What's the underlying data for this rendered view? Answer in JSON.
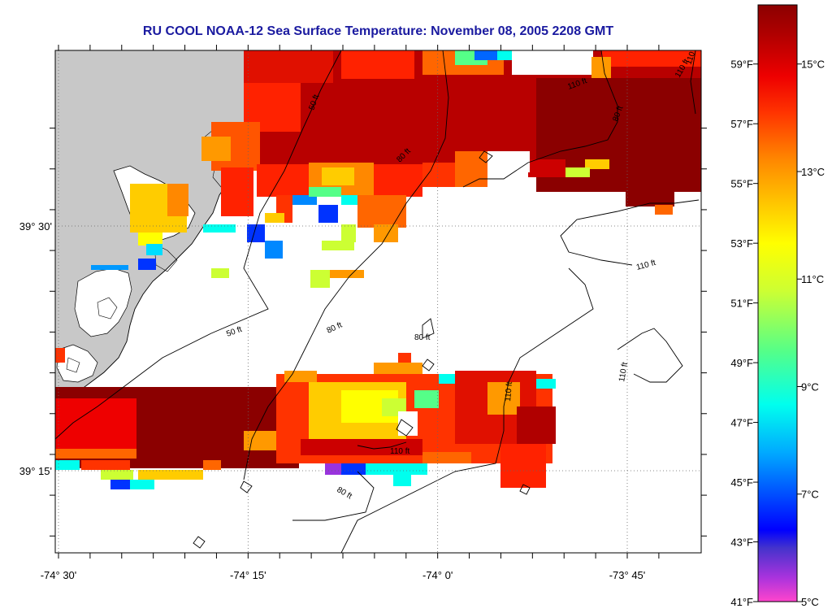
{
  "title": "RU COOL  NOAA-12  Sea Surface Temperature:  November 08, 2005 2208 GMT",
  "map": {
    "lon_ticks": [
      {
        "label": "-74° 30'",
        "value": -74.5
      },
      {
        "label": "-74° 15'",
        "value": -74.25
      },
      {
        "label": "-74° 0'",
        "value": -74.0
      },
      {
        "label": "-73° 45'",
        "value": -73.75
      }
    ],
    "lat_ticks": [
      {
        "label": "39° 30'",
        "value": 39.5
      },
      {
        "label": "39° 15'",
        "value": 39.25
      }
    ],
    "contour_labels": {
      "c50a": "50 ft",
      "c50b": "50 ft",
      "c80a": "80 ft",
      "c80b": "80 ft",
      "c80c": "80 ft",
      "c80d": "80 ft",
      "c80e": "80 ft",
      "c110a": "110 ft",
      "c110b": "110 ft",
      "c110c": "110 ft",
      "c110d": "110 ft",
      "c110e": "110 ft",
      "c110f": "110 ft",
      "c110g": "110 ft"
    },
    "colors": {
      "land": "#c8c8c8",
      "no_data": "#ffffff",
      "contour": "#000000",
      "title": "#1a1aa0"
    }
  },
  "colorbar": {
    "fahrenheit": [
      {
        "label": "59°F",
        "value": 59
      },
      {
        "label": "57°F",
        "value": 57
      },
      {
        "label": "55°F",
        "value": 55
      },
      {
        "label": "53°F",
        "value": 53
      },
      {
        "label": "51°F",
        "value": 51
      },
      {
        "label": "49°F",
        "value": 49
      },
      {
        "label": "47°F",
        "value": 47
      },
      {
        "label": "45°F",
        "value": 45
      },
      {
        "label": "43°F",
        "value": 43
      },
      {
        "label": "41°F",
        "value": 41
      }
    ],
    "celsius": [
      {
        "label": "15°C",
        "value": 15
      },
      {
        "label": "13°C",
        "value": 13
      },
      {
        "label": "11°C",
        "value": 11
      },
      {
        "label": "9°C",
        "value": 9
      },
      {
        "label": "7°C",
        "value": 7
      },
      {
        "label": "5°C",
        "value": 5
      }
    ],
    "range_c": [
      5,
      16.1
    ],
    "gradient": [
      "#ff44cc",
      "#9933dd",
      "#3333cc",
      "#0000ff",
      "#00aaff",
      "#00ffee",
      "#55ff88",
      "#ccff33",
      "#ffff00",
      "#ffcc00",
      "#ff8800",
      "#ff3300",
      "#ee0000",
      "#b00000",
      "#8b0000"
    ]
  }
}
